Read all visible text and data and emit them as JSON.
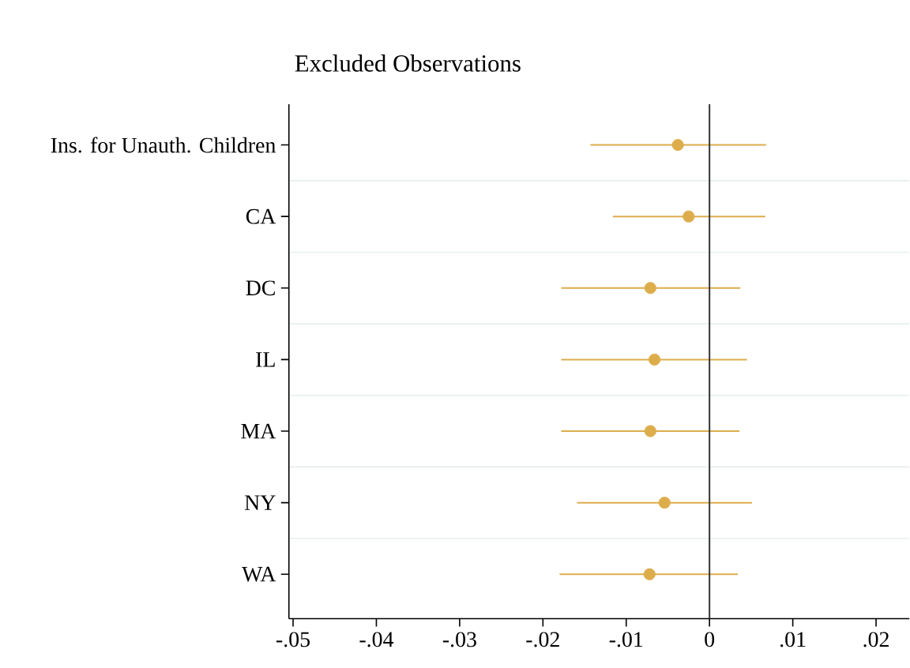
{
  "chart_data": {
    "type": "scatter",
    "orientation": "horizontal",
    "title": "Excluded Observations",
    "categories": [
      "Ins. for Unauth. Children",
      "CA",
      "DC",
      "IL",
      "MA",
      "NY",
      "WA"
    ],
    "values": [
      -0.0038,
      -0.0025,
      -0.0071,
      -0.0066,
      -0.0071,
      -0.0054,
      -0.0072
    ],
    "errors": [
      [
        -0.0143,
        0.0068
      ],
      [
        -0.0116,
        0.0067
      ],
      [
        -0.0178,
        0.0037
      ],
      [
        -0.0178,
        0.0045
      ],
      [
        -0.0178,
        0.0036
      ],
      [
        -0.0159,
        0.0051
      ],
      [
        -0.018,
        0.0034
      ]
    ],
    "color": "#ddad4c",
    "marker": "circle",
    "grid": "y",
    "xlim": [
      -0.0505,
      0.024
    ],
    "xticks": [
      {
        "value": -0.05,
        "label": "-.05"
      },
      {
        "value": -0.04,
        "label": "-.04"
      },
      {
        "value": -0.03,
        "label": "-.03"
      },
      {
        "value": -0.02,
        "label": "-.02"
      },
      {
        "value": -0.01,
        "label": "-.01"
      },
      0,
      {
        "value": 0.01,
        "label": ".01"
      },
      {
        "value": 0.02,
        "label": ".02"
      }
    ],
    "ref_lines": [
      {
        "axis": "x",
        "value": 0,
        "color": "#333333"
      }
    ]
  }
}
